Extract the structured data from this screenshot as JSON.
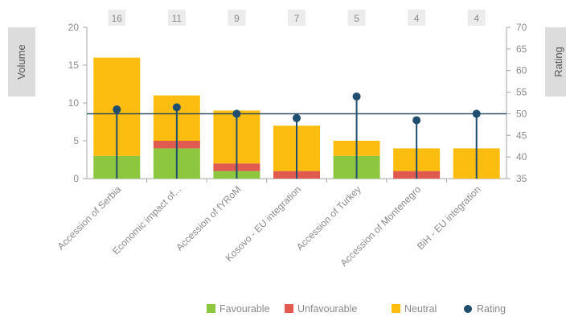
{
  "chart_data": {
    "type": "bar",
    "stacked": true,
    "categories": [
      "Accession of Serbia",
      "Economic impact of...",
      "Accession of fYRoM",
      "Kosovo - EU integration",
      "Accession of Turkey",
      "Accession of Montenegro",
      "BiH - EU integration"
    ],
    "series": [
      {
        "name": "Favourable",
        "values": [
          3,
          4,
          1,
          0,
          3,
          0,
          0
        ],
        "color": "#8dc63f"
      },
      {
        "name": "Unfavourable",
        "values": [
          0,
          1,
          1,
          1,
          0,
          1,
          0
        ],
        "color": "#e05a4f"
      },
      {
        "name": "Neutral",
        "values": [
          13,
          6,
          7,
          6,
          2,
          3,
          4
        ],
        "color": "#fdbd10"
      }
    ],
    "totals": [
      "16",
      "11",
      "9",
      "7",
      "5",
      "4",
      "4"
    ],
    "rating": {
      "name": "Rating",
      "values": [
        51,
        51.5,
        50,
        49,
        54,
        48.5,
        50
      ],
      "color": "#1f4e6e"
    },
    "reference_line": 50,
    "ylabel": "Volume",
    "y2label": "Rating",
    "ylim": [
      0,
      20
    ],
    "y_ticks": [
      "0",
      "5",
      "10",
      "15",
      "20"
    ],
    "y2lim": [
      35,
      70
    ],
    "y2_ticks": [
      "35",
      "40",
      "45",
      "50",
      "55",
      "60",
      "65",
      "70"
    ],
    "legend_position": "bottom-right"
  }
}
